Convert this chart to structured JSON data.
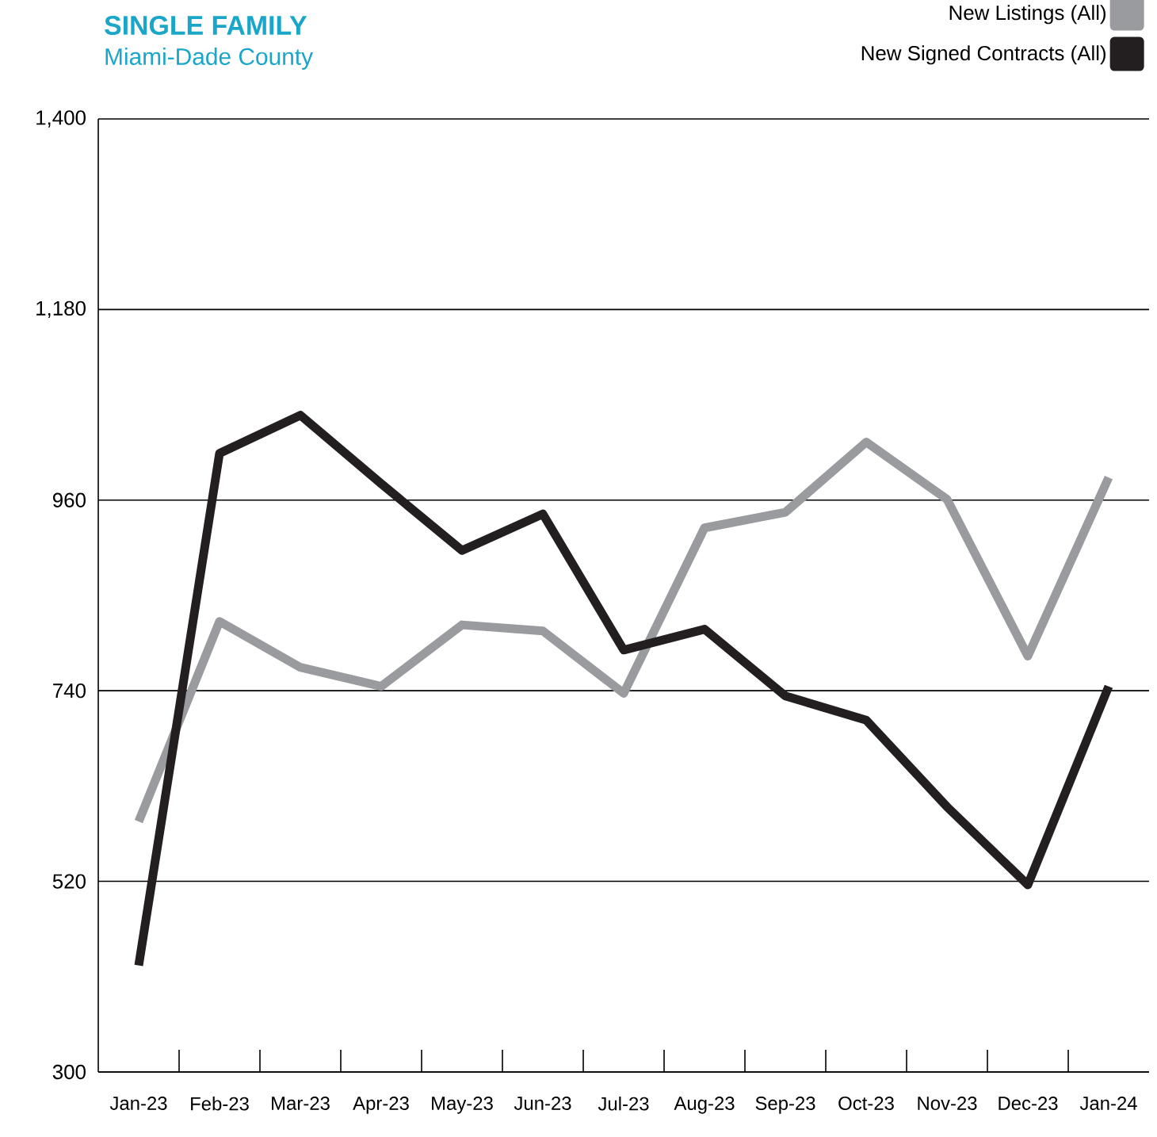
{
  "chart_data": {
    "type": "line",
    "title": "SINGLE FAMILY",
    "subtitle": "Miami-Dade County",
    "categories": [
      "Jan-23",
      "Feb-23",
      "Mar-23",
      "Apr-23",
      "May-23",
      "Jun-23",
      "Jul-23",
      "Aug-23",
      "Sep-23",
      "Oct-23",
      "Nov-23",
      "Dec-23",
      "Jan-24"
    ],
    "series": [
      {
        "name": "New Listings (All)",
        "color": "#9a9b9f",
        "values": [
          589,
          820,
          767,
          745,
          816,
          809,
          737,
          928,
          946,
          1027,
          961,
          780,
          986
        ]
      },
      {
        "name": "New Signed Contracts (All)",
        "color": "#231f20",
        "values": [
          423,
          1014,
          1058,
          979,
          902,
          944,
          787,
          811,
          734,
          706,
          606,
          516,
          745
        ]
      }
    ],
    "ylim": [
      300,
      1400
    ],
    "yticks": [
      300,
      520,
      740,
      960,
      {
        "value": 1180,
        "label": "1,180"
      },
      {
        "value": 1400,
        "label": "1,400"
      }
    ],
    "grid": "y",
    "legend": "top right",
    "marker": "none",
    "line_style": "solid"
  }
}
